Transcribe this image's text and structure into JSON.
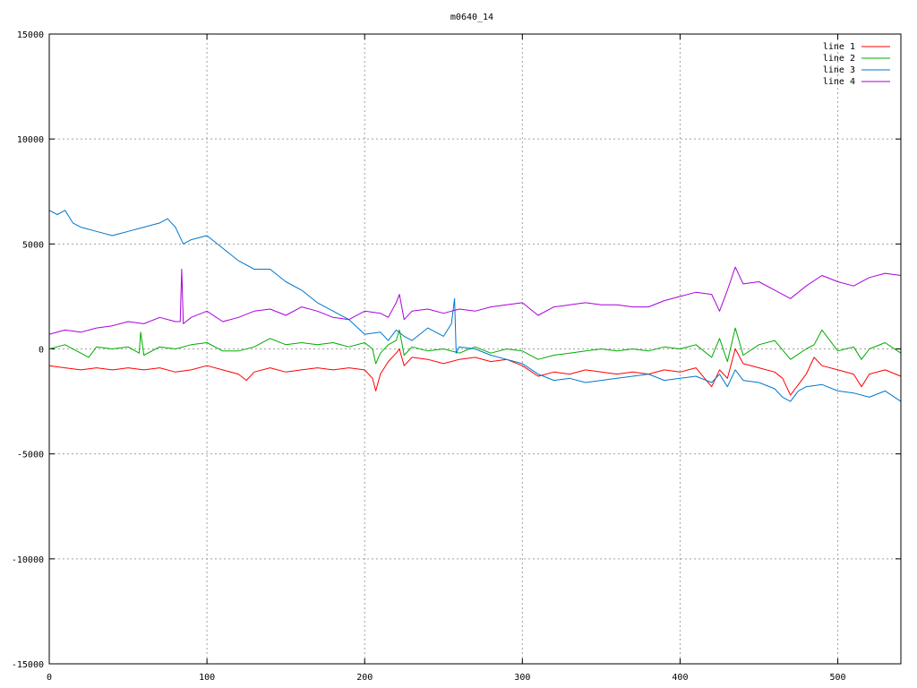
{
  "chart_data": {
    "type": "line",
    "title": "m0640_14",
    "xlabel": "",
    "ylabel": "",
    "xlim": [
      0,
      540
    ],
    "ylim": [
      -15000,
      15000
    ],
    "x_ticks": [
      0,
      100,
      200,
      300,
      400,
      500
    ],
    "y_ticks": [
      -15000,
      -10000,
      -5000,
      0,
      5000,
      10000,
      15000
    ],
    "grid": true,
    "legend_position": "top-right",
    "series": [
      {
        "name": "line 1",
        "color": "#ff0000",
        "x": [
          0,
          10,
          20,
          30,
          40,
          50,
          60,
          70,
          80,
          90,
          100,
          110,
          120,
          125,
          130,
          140,
          150,
          160,
          170,
          180,
          190,
          200,
          205,
          207,
          210,
          215,
          220,
          222,
          225,
          230,
          240,
          250,
          260,
          270,
          280,
          290,
          300,
          310,
          320,
          330,
          340,
          350,
          360,
          370,
          380,
          390,
          400,
          410,
          420,
          425,
          430,
          435,
          440,
          450,
          460,
          465,
          470,
          475,
          480,
          485,
          490,
          500,
          510,
          515,
          520,
          530,
          540
        ],
        "y": [
          -800,
          -900,
          -1000,
          -900,
          -1000,
          -900,
          -1000,
          -900,
          -1100,
          -1000,
          -800,
          -1000,
          -1200,
          -1500,
          -1100,
          -900,
          -1100,
          -1000,
          -900,
          -1000,
          -900,
          -1000,
          -1400,
          -2000,
          -1200,
          -600,
          -200,
          0,
          -800,
          -400,
          -500,
          -700,
          -500,
          -400,
          -600,
          -500,
          -800,
          -1300,
          -1100,
          -1200,
          -1000,
          -1100,
          -1200,
          -1100,
          -1200,
          -1000,
          -1100,
          -900,
          -1800,
          -1000,
          -1400,
          0,
          -700,
          -900,
          -1100,
          -1400,
          -2200,
          -1700,
          -1200,
          -400,
          -800,
          -1000,
          -1200,
          -1800,
          -1200,
          -1000,
          -1300
        ]
      },
      {
        "name": "line 2",
        "color": "#00aa00",
        "x": [
          0,
          10,
          20,
          25,
          30,
          40,
          50,
          57,
          58,
          60,
          70,
          80,
          90,
          100,
          110,
          120,
          130,
          140,
          150,
          160,
          170,
          180,
          190,
          200,
          205,
          207,
          210,
          215,
          220,
          222,
          225,
          230,
          240,
          250,
          260,
          270,
          280,
          290,
          300,
          310,
          320,
          330,
          340,
          350,
          360,
          370,
          380,
          390,
          400,
          410,
          420,
          425,
          430,
          435,
          440,
          450,
          460,
          470,
          480,
          485,
          490,
          500,
          510,
          515,
          520,
          530,
          540
        ],
        "y": [
          0,
          200,
          -200,
          -400,
          100,
          0,
          100,
          -200,
          800,
          -300,
          100,
          0,
          200,
          300,
          -100,
          -100,
          100,
          500,
          200,
          300,
          200,
          300,
          100,
          300,
          0,
          -700,
          -200,
          200,
          400,
          900,
          -300,
          100,
          -100,
          0,
          -200,
          100,
          -200,
          0,
          -100,
          -500,
          -300,
          -200,
          -100,
          0,
          -100,
          0,
          -100,
          100,
          0,
          200,
          -400,
          500,
          -600,
          1000,
          -300,
          200,
          400,
          -500,
          0,
          200,
          900,
          -100,
          100,
          -500,
          0,
          300,
          -200
        ]
      },
      {
        "name": "line 3",
        "color": "#0077cc",
        "x": [
          0,
          5,
          10,
          15,
          20,
          30,
          40,
          50,
          60,
          70,
          75,
          80,
          85,
          90,
          100,
          110,
          120,
          130,
          140,
          150,
          160,
          170,
          180,
          190,
          200,
          210,
          215,
          220,
          225,
          230,
          240,
          250,
          255,
          257,
          258,
          260,
          270,
          280,
          290,
          300,
          310,
          320,
          330,
          340,
          350,
          360,
          370,
          380,
          390,
          400,
          410,
          420,
          425,
          430,
          435,
          440,
          450,
          460,
          465,
          470,
          475,
          480,
          490,
          500,
          510,
          520,
          530,
          540
        ],
        "y": [
          6600,
          6400,
          6600,
          6000,
          5800,
          5600,
          5400,
          5600,
          5800,
          6000,
          6200,
          5800,
          5000,
          5200,
          5400,
          4800,
          4200,
          3800,
          3800,
          3200,
          2800,
          2200,
          1800,
          1400,
          700,
          800,
          400,
          900,
          600,
          400,
          1000,
          600,
          1200,
          2400,
          -200,
          100,
          0,
          -300,
          -500,
          -700,
          -1200,
          -1500,
          -1400,
          -1600,
          -1500,
          -1400,
          -1300,
          -1200,
          -1500,
          -1400,
          -1300,
          -1600,
          -1200,
          -1800,
          -1000,
          -1500,
          -1600,
          -1900,
          -2300,
          -2500,
          -2000,
          -1800,
          -1700,
          -2000,
          -2100,
          -2300,
          -2000,
          -2500
        ]
      },
      {
        "name": "line 4",
        "color": "#aa00dd",
        "x": [
          0,
          10,
          20,
          30,
          40,
          50,
          60,
          70,
          80,
          83,
          84,
          85,
          90,
          100,
          110,
          120,
          130,
          140,
          150,
          160,
          170,
          180,
          190,
          200,
          210,
          215,
          220,
          222,
          225,
          230,
          240,
          250,
          260,
          270,
          280,
          290,
          300,
          310,
          320,
          330,
          340,
          350,
          360,
          370,
          380,
          390,
          400,
          410,
          420,
          425,
          430,
          435,
          440,
          450,
          460,
          470,
          480,
          490,
          500,
          510,
          520,
          530,
          540
        ],
        "y": [
          700,
          900,
          800,
          1000,
          1100,
          1300,
          1200,
          1500,
          1300,
          1300,
          3800,
          1200,
          1500,
          1800,
          1300,
          1500,
          1800,
          1900,
          1600,
          2000,
          1800,
          1500,
          1400,
          1800,
          1700,
          1500,
          2200,
          2600,
          1400,
          1800,
          1900,
          1700,
          1900,
          1800,
          2000,
          2100,
          2200,
          1600,
          2000,
          2100,
          2200,
          2100,
          2100,
          2000,
          2000,
          2300,
          2500,
          2700,
          2600,
          1800,
          2800,
          3900,
          3100,
          3200,
          2800,
          2400,
          3000,
          3500,
          3200,
          3000,
          3400,
          3600,
          3500
        ]
      }
    ]
  }
}
